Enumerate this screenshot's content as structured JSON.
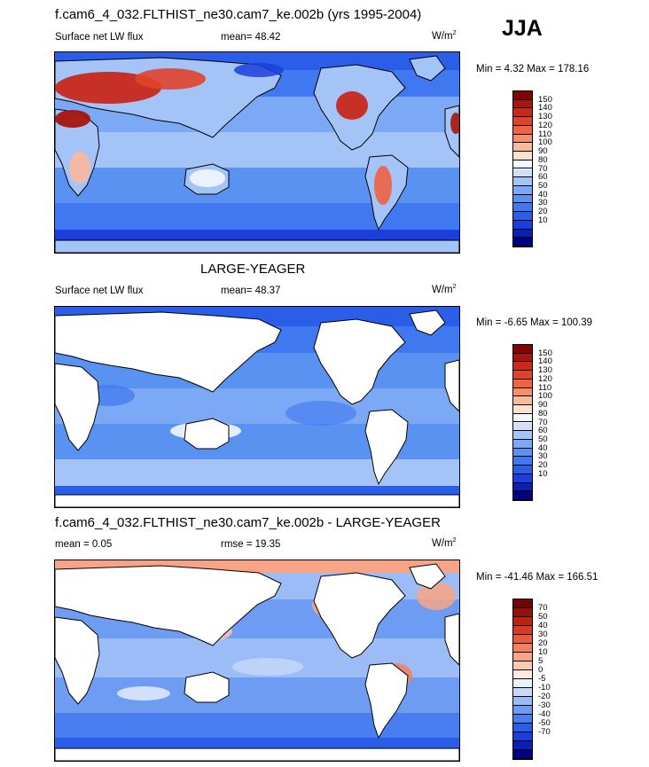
{
  "season": "JJA",
  "colors": {
    "land": "#ffffff",
    "coast": "#000000",
    "panel1_scale": [
      "#000082",
      "#0a1fb8",
      "#1a3fdc",
      "#2b5ee8",
      "#3f78f0",
      "#5a92f2",
      "#7ba9f5",
      "#a4c4f7",
      "#cfe0fa",
      "#f3f7fe",
      "#fde1cf",
      "#fbb99c",
      "#f88e6a",
      "#ef6243",
      "#e0432a",
      "#c9281a",
      "#a8150d",
      "#820505"
    ],
    "panel3_scale": [
      "#000082",
      "#0a1fb8",
      "#1a3fdc",
      "#2b5ee8",
      "#4a7df0",
      "#6f9cf3",
      "#9bbcf6",
      "#c6d9f9",
      "#eaf1fd",
      "#fdebe2",
      "#fcc9b1",
      "#f9a486",
      "#f47e5d",
      "#ea5a3b",
      "#d83b22",
      "#bb2214",
      "#960f08",
      "#700303"
    ]
  },
  "panels": [
    {
      "title": "f.cam6_4_032.FLTHIST_ne30.cam7_ke.002b (yrs 1995-2004)",
      "left_label": "Surface net LW flux",
      "center_label": "mean=  48.42",
      "unit": "W/m",
      "unit_sup": "2",
      "minmax": "Min =   4.32 Max = 178.16",
      "colorbar_ticks": [
        "150",
        "140",
        "130",
        "120",
        "110",
        "100",
        "90",
        "80",
        "70",
        "60",
        "50",
        "40",
        "30",
        "20",
        "10"
      ]
    },
    {
      "title": "LARGE-YEAGER",
      "left_label": "Surface net LW flux",
      "center_label": "mean=  48.37",
      "unit": "W/m",
      "unit_sup": "2",
      "minmax": "Min =  -6.65 Max = 100.39",
      "colorbar_ticks": [
        "150",
        "140",
        "130",
        "120",
        "110",
        "100",
        "90",
        "80",
        "70",
        "60",
        "50",
        "40",
        "30",
        "20",
        "10"
      ]
    },
    {
      "title": "f.cam6_4_032.FLTHIST_ne30.cam7_ke.002b - LARGE-YEAGER",
      "left_label": "mean =   0.05",
      "center_label": "rmse =  19.35",
      "unit": "W/m",
      "unit_sup": "2",
      "minmax": "Min = -41.46 Max = 166.51",
      "colorbar_ticks": [
        "70",
        "50",
        "40",
        "30",
        "20",
        "10",
        "5",
        "0",
        "-5",
        "-10",
        "-20",
        "-30",
        "-40",
        "-50",
        "-70"
      ]
    }
  ],
  "chart_data": [
    {
      "type": "heatmap",
      "title": "f.cam6_4_032.FLTHIST_ne30.cam7_ke.002b (yrs 1995-2004)",
      "variable": "Surface net LW flux",
      "season": "JJA",
      "mean": 48.42,
      "min": 4.32,
      "max": 178.16,
      "units": "W/m2",
      "projection": "global cylindrical equidistant, Pacific-centered",
      "land_masked": false,
      "colorbar_levels": [
        10,
        20,
        30,
        40,
        50,
        60,
        70,
        80,
        90,
        100,
        110,
        120,
        130,
        140,
        150
      ]
    },
    {
      "type": "heatmap",
      "title": "LARGE-YEAGER",
      "variable": "Surface net LW flux",
      "season": "JJA",
      "mean": 48.37,
      "min": -6.65,
      "max": 100.39,
      "units": "W/m2",
      "projection": "global cylindrical equidistant, Pacific-centered",
      "land_masked": true,
      "colorbar_levels": [
        10,
        20,
        30,
        40,
        50,
        60,
        70,
        80,
        90,
        100,
        110,
        120,
        130,
        140,
        150
      ]
    },
    {
      "type": "heatmap",
      "title": "f.cam6_4_032.FLTHIST_ne30.cam7_ke.002b - LARGE-YEAGER",
      "season": "JJA",
      "mean": 0.05,
      "rmse": 19.35,
      "min": -41.46,
      "max": 166.51,
      "units": "W/m2",
      "projection": "global cylindrical equidistant, Pacific-centered",
      "land_masked": true,
      "colorbar_levels": [
        -70,
        -50,
        -40,
        -30,
        -20,
        -10,
        -5,
        0,
        5,
        10,
        20,
        30,
        40,
        50,
        70
      ]
    }
  ]
}
